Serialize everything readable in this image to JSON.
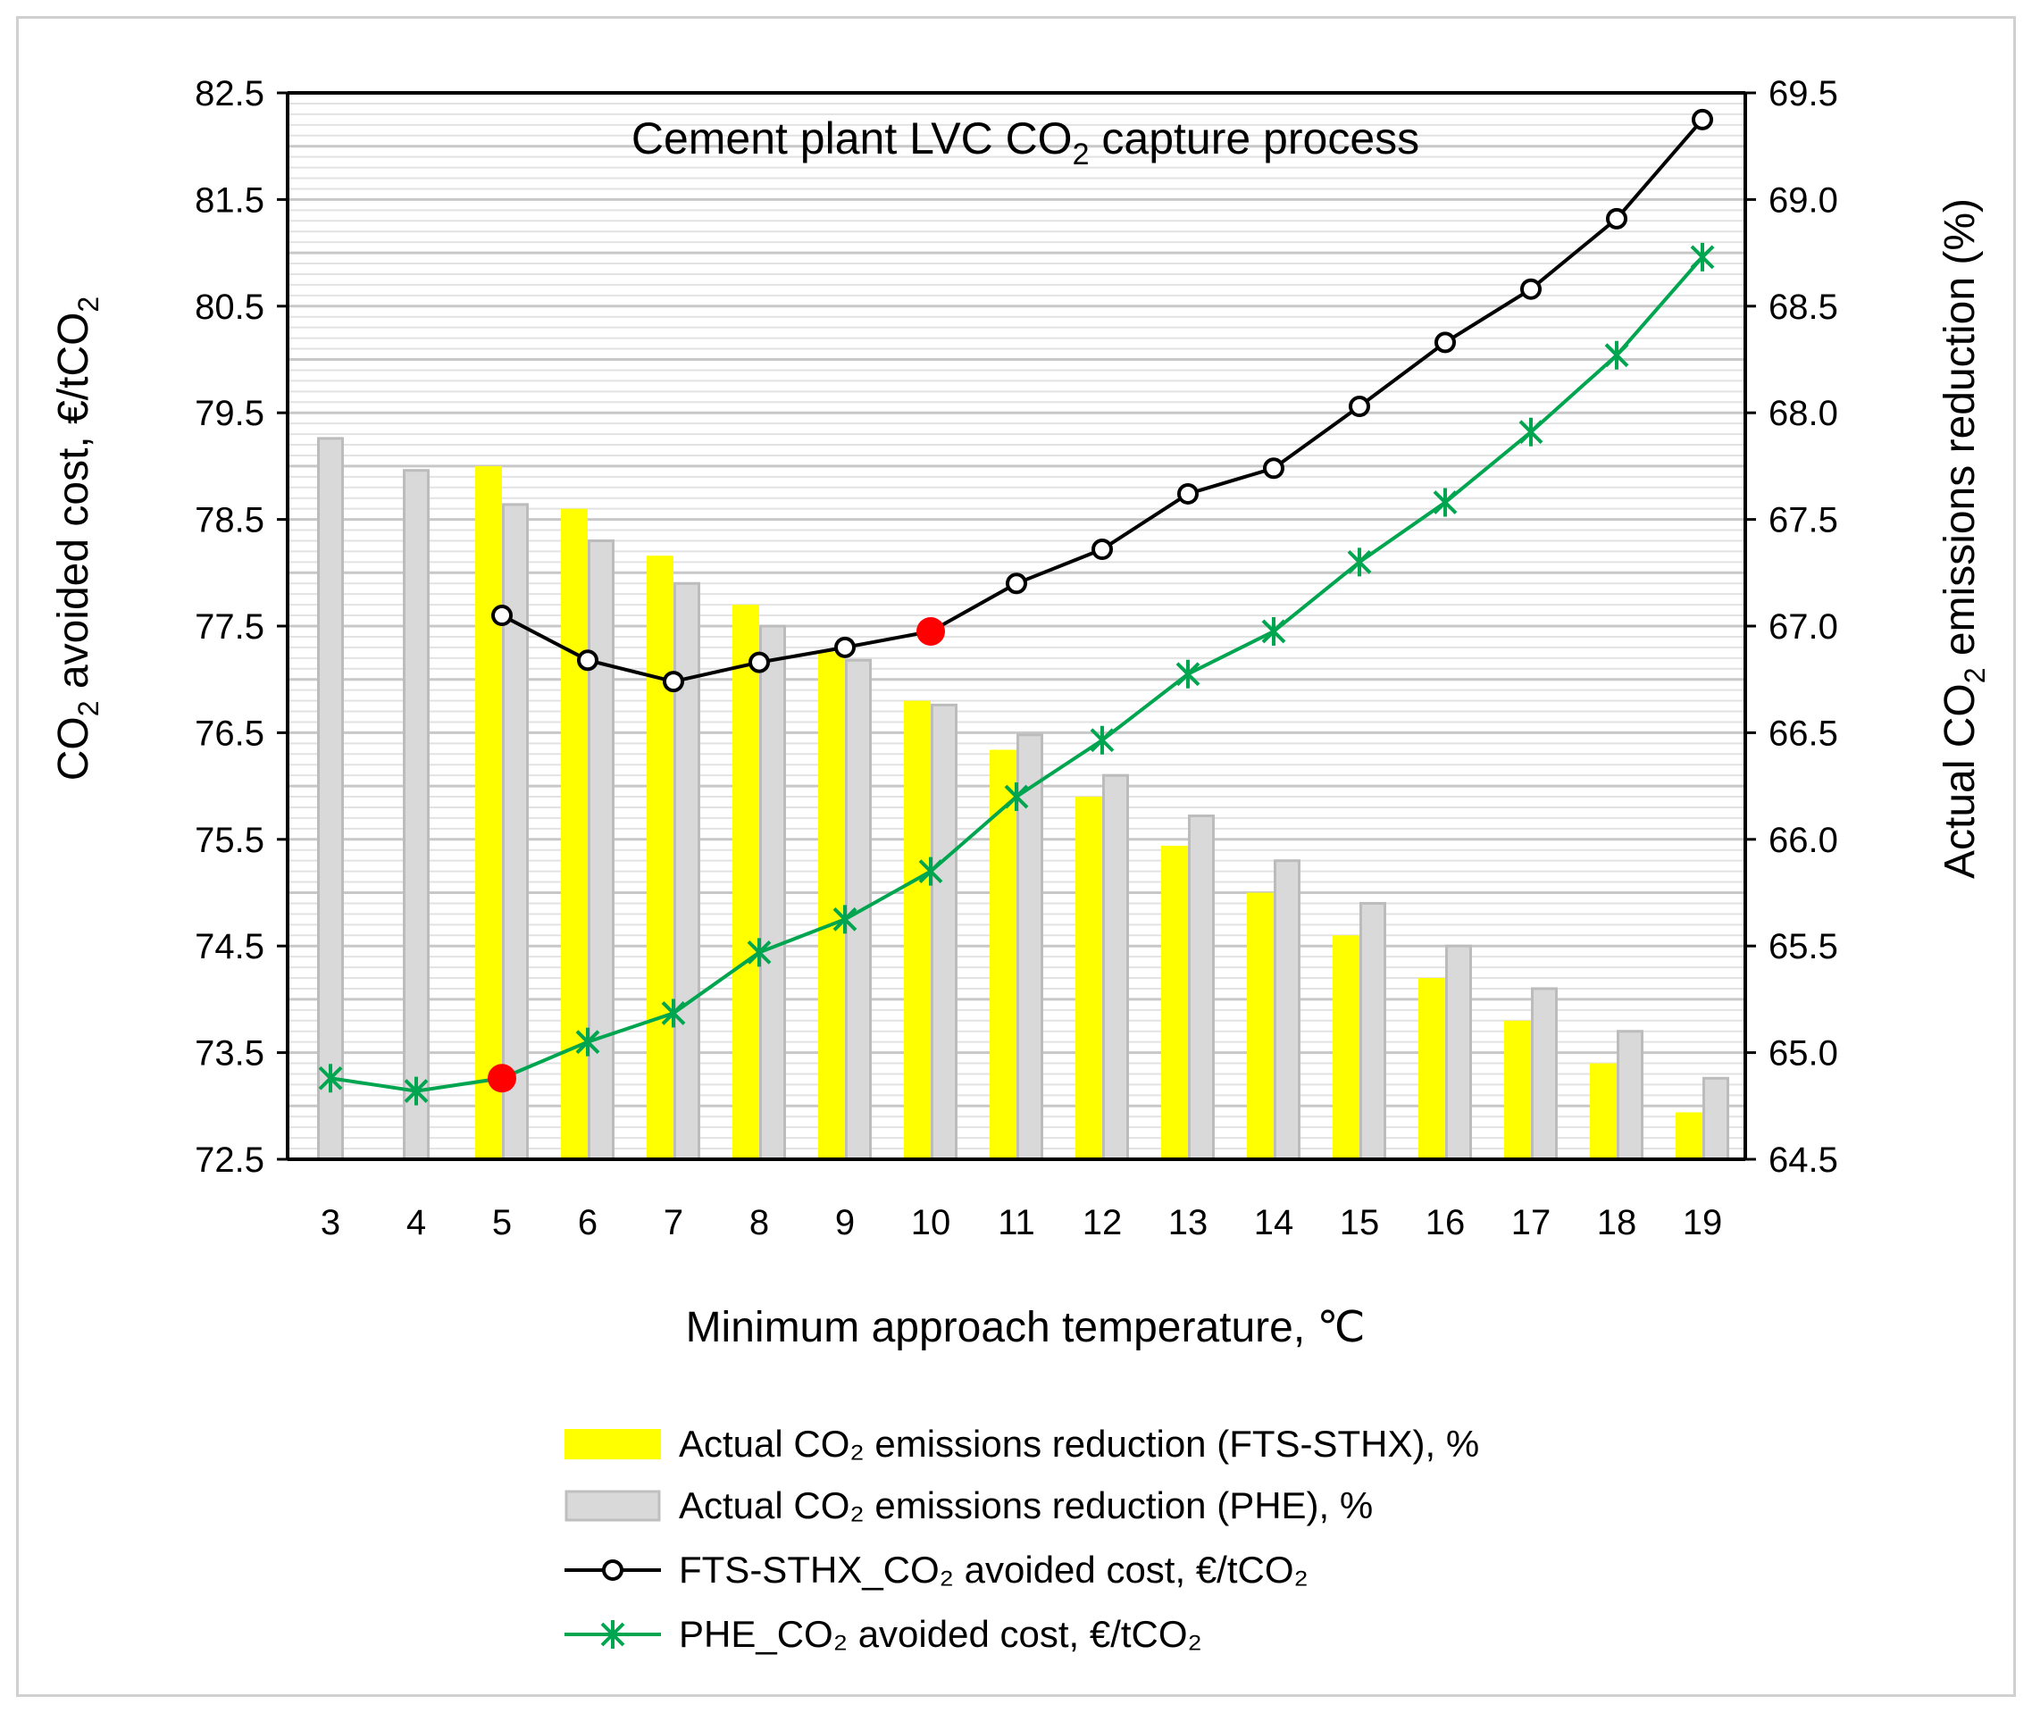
{
  "chart_data": {
    "type": "bar+line",
    "title": "Cement plant LVC CO",
    "title_sub": "2",
    "title_suffix": " capture process",
    "xlabel": "Minimum approach temperature, ℃",
    "ylabel_left": "CO",
    "ylabel_left_sub": "2",
    "ylabel_left_suffix": " avoided cost, €/tCO",
    "ylabel_left_sub2": "2",
    "ylabel_right": "Actual CO",
    "ylabel_right_sub": "2",
    "ylabel_right_suffix": " emissions reduction (%)",
    "categories": [
      3,
      4,
      5,
      6,
      7,
      8,
      9,
      10,
      11,
      12,
      13,
      14,
      15,
      16,
      17,
      18,
      19
    ],
    "ylim_left": [
      72.5,
      82.5
    ],
    "ylim_right": [
      64.5,
      69.5
    ],
    "left_ticks": [
      "72.5",
      "73.5",
      "74.5",
      "75.5",
      "76.5",
      "77.5",
      "78.5",
      "79.5",
      "80.5",
      "81.5",
      "82.5"
    ],
    "right_ticks": [
      "64.5",
      "65.0",
      "65.5",
      "66.0",
      "66.5",
      "67.0",
      "67.5",
      "68.0",
      "68.5",
      "69.0",
      "69.5"
    ],
    "series": [
      {
        "name": "Actual CO₂ emissions reduction (FTS-STHX), %",
        "type": "bar",
        "axis": "right",
        "color": "#ffff00",
        "values": [
          null,
          null,
          67.75,
          67.55,
          67.33,
          67.1,
          66.88,
          66.65,
          66.42,
          66.2,
          65.97,
          65.75,
          65.55,
          65.35,
          65.15,
          64.95,
          64.72
        ]
      },
      {
        "name": "Actual CO₂ emissions reduction (PHE), %",
        "type": "bar",
        "axis": "right",
        "color": "#d9d9d9",
        "values": [
          67.88,
          67.73,
          67.57,
          67.4,
          67.2,
          67.0,
          66.84,
          66.63,
          66.49,
          66.3,
          66.11,
          65.9,
          65.7,
          65.5,
          65.3,
          65.1,
          64.88
        ]
      },
      {
        "name": "FTS-STHX_CO₂ avoided cost, €/tCO₂",
        "type": "line",
        "axis": "left",
        "color": "#000000",
        "marker": "circle",
        "values": [
          null,
          null,
          77.6,
          77.18,
          76.98,
          77.16,
          77.3,
          77.45,
          77.9,
          78.22,
          78.74,
          78.98,
          79.56,
          80.16,
          80.66,
          81.32,
          82.25
        ],
        "highlight_index": 7
      },
      {
        "name": "PHE_CO₂ avoided cost, €/tCO₂",
        "type": "line",
        "axis": "left",
        "color": "#00a550",
        "marker": "asterisk",
        "values": [
          73.26,
          73.14,
          73.26,
          73.6,
          73.87,
          74.44,
          74.75,
          75.2,
          75.9,
          76.43,
          77.05,
          77.45,
          78.1,
          78.66,
          79.32,
          80.04,
          80.96
        ],
        "highlight_index": 2
      }
    ],
    "highlight_color": "#ff0000",
    "legend_position": "bottom"
  }
}
